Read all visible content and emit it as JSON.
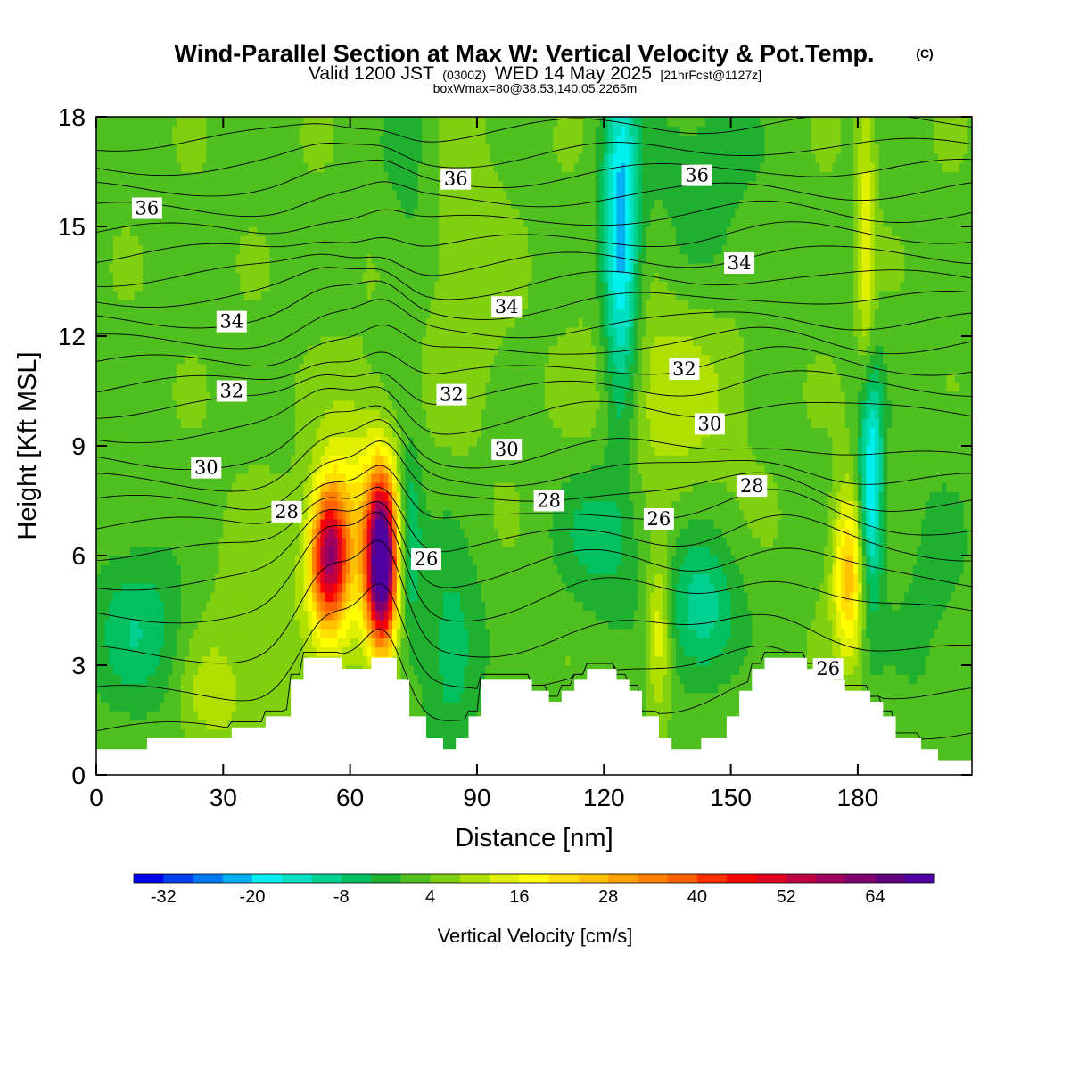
{
  "header": {
    "title": "Wind-Parallel Section at Max W: Vertical Velocity & Pot.Temp.",
    "copyright": "(C)",
    "valid_prefix": "Valid 1200 JST",
    "valid_zulu": "(0300Z)",
    "valid_date": "WED 14 May 2025",
    "forecast": "[21hrFcst@1127z]",
    "box_info": "boxWmax=80@38.53,140.05,2265m"
  },
  "chart_data": {
    "type": "heatmap",
    "title": "Wind-Parallel Section at Max W: Vertical Velocity & Pot.Temp.",
    "xlabel": "Distance [nm]",
    "ylabel": "Height [Kft MSL]",
    "xlim": [
      0,
      207
    ],
    "ylim": [
      0,
      18
    ],
    "x_ticks": [
      0,
      30,
      60,
      90,
      120,
      150,
      180
    ],
    "y_ticks": [
      0,
      3,
      6,
      9,
      12,
      15,
      18
    ],
    "colorbar": {
      "label": "Vertical Velocity [cm/s]",
      "min": -36,
      "max": 72,
      "step": 4,
      "tick_values": [
        -32,
        -20,
        -8,
        4,
        16,
        28,
        40,
        52,
        64
      ],
      "colors": [
        "#0000f0",
        "#0040f0",
        "#0078f0",
        "#00b0f0",
        "#00f0f0",
        "#00e0c0",
        "#00d090",
        "#00c060",
        "#20b030",
        "#50c020",
        "#80d010",
        "#b0e000",
        "#e0f000",
        "#ffff00",
        "#ffe000",
        "#ffc000",
        "#ffa000",
        "#ff8000",
        "#ff6000",
        "#ff3000",
        "#ff0000",
        "#e00020",
        "#c00040",
        "#a00060",
        "#800070",
        "#600080",
        "#5000a0"
      ]
    },
    "background_value": 3,
    "updraft_cells": [
      {
        "x": 55,
        "z": 6.0,
        "sx": 3.0,
        "sz": 1.3,
        "w": 50
      },
      {
        "x": 67.5,
        "z": 5.8,
        "sx": 2.5,
        "sz": 1.6,
        "w": 74
      },
      {
        "x": 61,
        "z": 6.8,
        "sx": 6.0,
        "sz": 2.3,
        "w": 15
      },
      {
        "x": 178,
        "z": 5.5,
        "sx": 2.6,
        "sz": 1.6,
        "w": 24
      },
      {
        "x": 182,
        "z": 14.5,
        "sx": 1.5,
        "sz": 3.5,
        "w": 12
      },
      {
        "x": 133,
        "z": 4.0,
        "sx": 2.0,
        "sz": 1.5,
        "w": 14
      },
      {
        "x": 27,
        "z": 2.2,
        "sx": 5.0,
        "sz": 1.0,
        "w": 8
      },
      {
        "x": 134,
        "z": 10.5,
        "sx": 12.0,
        "sz": 2.0,
        "w": 8
      },
      {
        "x": 40,
        "z": 4.5,
        "sx": 9.0,
        "sz": 2.0,
        "w": 4
      },
      {
        "x": 86,
        "z": 14.0,
        "sx": 7.0,
        "sz": 3.0,
        "w": 5
      }
    ],
    "downdraft_cells": [
      {
        "x": 124,
        "z": 14.5,
        "sx": 3.0,
        "sz": 3.5,
        "w": -26
      },
      {
        "x": 183,
        "z": 8.0,
        "sx": 2.0,
        "sz": 2.3,
        "w": -26
      },
      {
        "x": 74,
        "z": 6.5,
        "sx": 2.2,
        "sz": 1.8,
        "w": -12
      },
      {
        "x": 143,
        "z": 4.5,
        "sx": 6.0,
        "sz": 1.4,
        "w": -14
      },
      {
        "x": 84,
        "z": 3.5,
        "sx": 5.0,
        "sz": 2.0,
        "w": -10
      },
      {
        "x": 10,
        "z": 4.0,
        "sx": 8.0,
        "sz": 1.6,
        "w": -10
      },
      {
        "x": 75,
        "z": 17.0,
        "sx": 5.0,
        "sz": 3.0,
        "w": -5
      },
      {
        "x": 119,
        "z": 6.5,
        "sx": 7.0,
        "sz": 1.5,
        "w": -9
      },
      {
        "x": 143,
        "z": 16.5,
        "sx": 10.0,
        "sz": 2.5,
        "w": -5
      },
      {
        "x": 198,
        "z": 4.5,
        "sx": 8.0,
        "sz": 3.0,
        "w": -4
      }
    ],
    "terrain": [
      [
        0,
        0.7
      ],
      [
        12,
        0.7
      ],
      [
        12,
        1.0
      ],
      [
        32,
        1.0
      ],
      [
        32,
        1.3
      ],
      [
        40,
        1.3
      ],
      [
        40,
        1.6
      ],
      [
        46,
        1.6
      ],
      [
        46,
        2.6
      ],
      [
        49,
        2.6
      ],
      [
        49,
        3.2
      ],
      [
        58,
        3.2
      ],
      [
        58,
        2.9
      ],
      [
        65,
        2.9
      ],
      [
        65,
        3.2
      ],
      [
        71,
        3.2
      ],
      [
        71,
        2.6
      ],
      [
        74,
        2.6
      ],
      [
        74,
        1.6
      ],
      [
        78,
        1.6
      ],
      [
        78,
        1.0
      ],
      [
        82,
        1.0
      ],
      [
        82,
        0.7
      ],
      [
        85,
        0.7
      ],
      [
        85,
        1.0
      ],
      [
        88,
        1.0
      ],
      [
        88,
        1.6
      ],
      [
        91,
        1.6
      ],
      [
        91,
        2.6
      ],
      [
        103,
        2.6
      ],
      [
        103,
        2.3
      ],
      [
        107,
        2.3
      ],
      [
        107,
        2.0
      ],
      [
        110,
        2.0
      ],
      [
        110,
        2.3
      ],
      [
        113,
        2.3
      ],
      [
        113,
        2.6
      ],
      [
        116,
        2.6
      ],
      [
        116,
        2.9
      ],
      [
        123,
        2.9
      ],
      [
        123,
        2.6
      ],
      [
        126,
        2.6
      ],
      [
        126,
        2.3
      ],
      [
        129,
        2.3
      ],
      [
        129,
        1.6
      ],
      [
        133,
        1.6
      ],
      [
        133,
        1.0
      ],
      [
        136,
        1.0
      ],
      [
        136,
        0.7
      ],
      [
        143,
        0.7
      ],
      [
        143,
        1.0
      ],
      [
        149,
        1.0
      ],
      [
        149,
        1.6
      ],
      [
        152,
        1.6
      ],
      [
        152,
        2.3
      ],
      [
        155,
        2.3
      ],
      [
        155,
        2.9
      ],
      [
        158,
        2.9
      ],
      [
        158,
        3.2
      ],
      [
        168,
        3.2
      ],
      [
        168,
        2.9
      ],
      [
        174,
        2.9
      ],
      [
        174,
        2.6
      ],
      [
        177,
        2.6
      ],
      [
        177,
        2.3
      ],
      [
        183,
        2.3
      ],
      [
        183,
        2.0
      ],
      [
        186,
        2.0
      ],
      [
        186,
        1.6
      ],
      [
        189,
        1.6
      ],
      [
        189,
        1.0
      ],
      [
        195,
        1.0
      ],
      [
        195,
        0.7
      ],
      [
        199,
        0.7
      ],
      [
        199,
        0.4
      ],
      [
        207,
        0.4
      ]
    ],
    "theta_contours": {
      "levels": [
        25,
        25.5,
        26,
        26.5,
        27,
        27.5,
        28,
        28.5,
        29,
        29.5,
        30,
        30.5,
        31,
        31.5,
        32,
        32.5,
        33,
        33.5,
        34,
        34.5,
        35,
        35.5,
        36,
        36.5
      ],
      "base_heights_kft": [
        1.2,
        2.2,
        3.3,
        4.4,
        5.3,
        6.1,
        6.8,
        7.4,
        8.0,
        8.6,
        9.3,
        10.0,
        10.6,
        11.2,
        11.8,
        12.4,
        13.0,
        13.6,
        14.2,
        14.8,
        15.4,
        16.0,
        16.6,
        17.3
      ],
      "labels": [
        {
          "text": "36",
          "x": 12,
          "z": 15.5
        },
        {
          "text": "36",
          "x": 85,
          "z": 16.3
        },
        {
          "text": "36",
          "x": 142,
          "z": 16.4
        },
        {
          "text": "34",
          "x": 32,
          "z": 12.4
        },
        {
          "text": "34",
          "x": 97,
          "z": 12.8
        },
        {
          "text": "34",
          "x": 152,
          "z": 14.0
        },
        {
          "text": "32",
          "x": 32,
          "z": 10.5
        },
        {
          "text": "32",
          "x": 84,
          "z": 10.4
        },
        {
          "text": "32",
          "x": 139,
          "z": 11.1
        },
        {
          "text": "30",
          "x": 26,
          "z": 8.4
        },
        {
          "text": "30",
          "x": 97,
          "z": 8.9
        },
        {
          "text": "30",
          "x": 145,
          "z": 9.6
        },
        {
          "text": "28",
          "x": 45,
          "z": 7.2
        },
        {
          "text": "28",
          "x": 107,
          "z": 7.5
        },
        {
          "text": "28",
          "x": 155,
          "z": 7.9
        },
        {
          "text": "26",
          "x": 78,
          "z": 5.9
        },
        {
          "text": "26",
          "x": 133,
          "z": 7.0
        },
        {
          "text": "26",
          "x": 173,
          "z": 2.9
        }
      ]
    },
    "grid": false
  }
}
